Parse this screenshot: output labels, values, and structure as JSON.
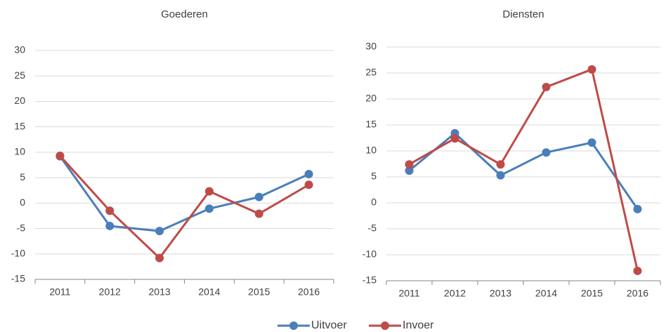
{
  "chart_data": [
    {
      "type": "line",
      "title": "Goederen",
      "categories": [
        "2011",
        "2012",
        "2013",
        "2014",
        "2015",
        "2016"
      ],
      "series": [
        {
          "name": "Uitvoer",
          "color": "#4a7ebb",
          "values": [
            9.2,
            -4.5,
            -5.5,
            -1.1,
            1.2,
            5.7
          ]
        },
        {
          "name": "Invoer",
          "color": "#be4b48",
          "values": [
            9.3,
            -1.5,
            -10.8,
            2.3,
            -2.1,
            3.6
          ]
        }
      ],
      "ylim": [
        -15,
        30
      ],
      "yticks": [
        -15,
        -10,
        -5,
        0,
        5,
        10,
        15,
        20,
        25,
        30
      ],
      "grid": true
    },
    {
      "type": "line",
      "title": "Diensten",
      "categories": [
        "2011",
        "2012",
        "2013",
        "2014",
        "2015",
        "2016"
      ],
      "series": [
        {
          "color": "#4a7ebb",
          "values": [
            6.2,
            13.4,
            5.3,
            9.7,
            11.6,
            -1.2
          ]
        },
        {
          "color": "#be4b48",
          "values": [
            7.4,
            12.4,
            7.4,
            22.3,
            25.7,
            -13.1
          ]
        }
      ],
      "ylim": [
        -15,
        30
      ],
      "yticks": [
        -15,
        -10,
        -5,
        0,
        5,
        10,
        15,
        20,
        25,
        30
      ],
      "grid": true
    }
  ]
}
